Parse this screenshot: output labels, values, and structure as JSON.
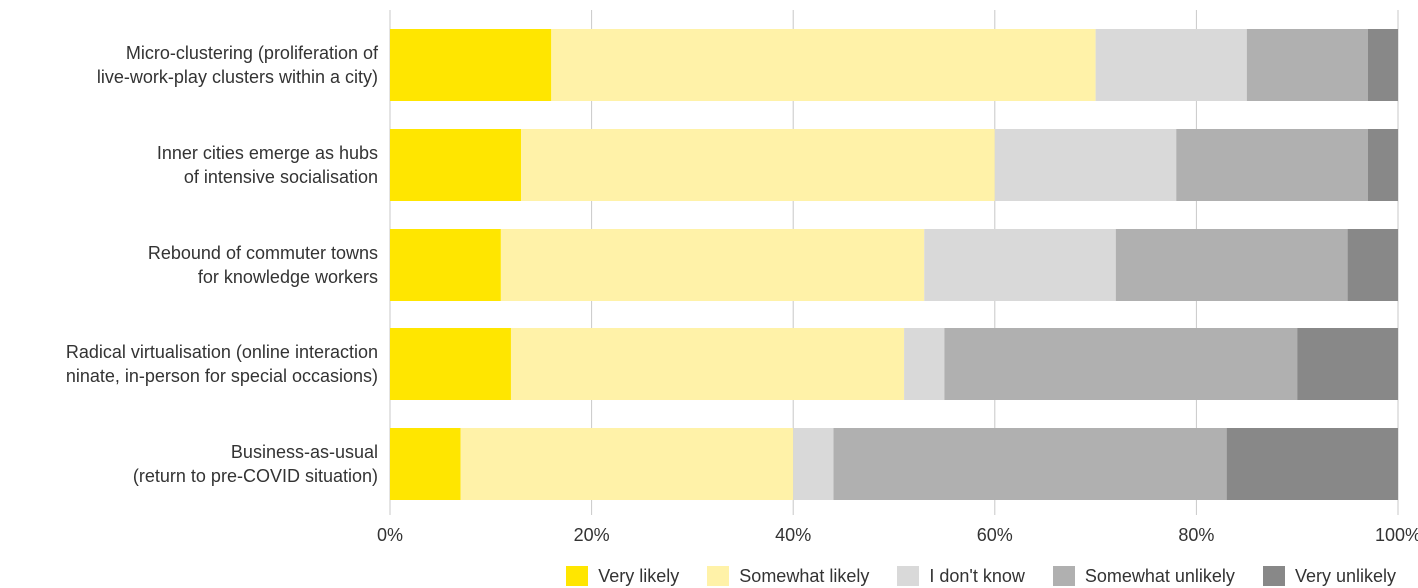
{
  "chart_data": {
    "type": "bar",
    "orientation": "horizontal",
    "stacked": true,
    "title": "",
    "xlabel": "",
    "ylabel": "",
    "xlim": [
      0,
      100
    ],
    "x_ticks": [
      "0%",
      "20%",
      "40%",
      "60%",
      "80%",
      "100%"
    ],
    "grid": "vertical",
    "legend_position": "bottom-right",
    "categories": [
      [
        "Micro-clustering (proliferation of",
        "live-work-play clusters within a city)"
      ],
      [
        "Inner cities emerge as hubs",
        "of intensive socialisation"
      ],
      [
        "Rebound of commuter towns",
        "for knowledge workers"
      ],
      [
        "Radical virtualisation (online interaction",
        "ninate, in-person for special occasions)"
      ],
      [
        "Business-as-usual",
        "(return to pre-COVID situation)"
      ]
    ],
    "series": [
      {
        "name": "Very likely",
        "color": "#FFE600",
        "values": [
          16,
          13,
          11,
          12,
          7
        ]
      },
      {
        "name": "Somewhat likely",
        "color": "#FFF2A8",
        "values": [
          54,
          47,
          42,
          39,
          33
        ]
      },
      {
        "name": "I don't know",
        "color": "#D9D9D9",
        "values": [
          15,
          18,
          19,
          4,
          4
        ]
      },
      {
        "name": "Somewhat unlikely",
        "color": "#B0B0B0",
        "values": [
          12,
          19,
          23,
          35,
          39
        ]
      },
      {
        "name": "Very unlikely",
        "color": "#888888",
        "values": [
          3,
          3,
          5,
          10,
          17
        ]
      }
    ]
  }
}
